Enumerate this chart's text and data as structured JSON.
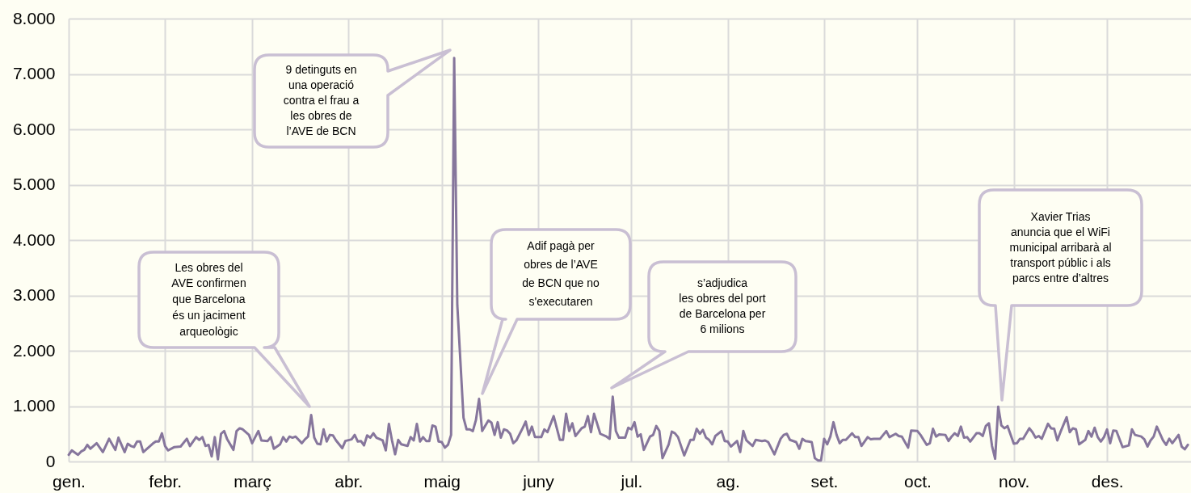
{
  "chart_data": {
    "type": "line",
    "color": "#86769c",
    "x": [
      "--01-01",
      "--01-02",
      "--01-04",
      "--01-05",
      "--01-06",
      "--01-07",
      "--01-08",
      "--01-10",
      "--01-12",
      "--01-14",
      "--01-16",
      "--01-17",
      "--01-19",
      "--01-20",
      "--01-21",
      "--01-22",
      "--01-23",
      "--01-24",
      "--01-25",
      "--01-28",
      "--01-29",
      "--01-30",
      "--01-31",
      "--02-01",
      "--02-02",
      "--02-04",
      "--02-06",
      "--02-08",
      "--02-09",
      "--02-11",
      "--02-12",
      "--02-13",
      "--02-14",
      "--02-15",
      "--02-16",
      "--02-17",
      "--02-18",
      "--02-19",
      "--02-20",
      "--02-21",
      "--02-23",
      "--02-24",
      "--02-25",
      "--02-26",
      "--02-28",
      "--03-01",
      "--03-03",
      "--03-04",
      "--03-06",
      "--03-07",
      "--03-08",
      "--03-10",
      "--03-11",
      "--03-12",
      "--03-13",
      "--03-14",
      "--03-15",
      "--03-17",
      "--03-18",
      "--03-19",
      "--03-20",
      "--03-21",
      "--03-22",
      "--03-23",
      "--03-24",
      "--03-25",
      "--03-26",
      "--03-27",
      "--03-28",
      "--03-30",
      "--03-31",
      "--04-02",
      "--04-03",
      "--04-04",
      "--04-05",
      "--04-06",
      "--04-07",
      "--04-08",
      "--04-09",
      "--04-10",
      "--04-12",
      "--04-13",
      "--04-14",
      "--04-15",
      "--04-16",
      "--04-17",
      "--04-18",
      "--04-20",
      "--04-21",
      "--04-22",
      "--04-23",
      "--04-24",
      "--04-25",
      "--04-26",
      "--04-27",
      "--04-28",
      "--04-29",
      "--04-30",
      "--05-01",
      "--05-02",
      "--05-03",
      "--05-04",
      "--05-05",
      "--05-06",
      "--05-07",
      "--05-08",
      "--05-09",
      "--05-10",
      "--05-11",
      "--05-12",
      "--05-13",
      "--05-14",
      "--05-16",
      "--05-17",
      "--05-18",
      "--05-19",
      "--05-20",
      "--05-21",
      "--05-22",
      "--05-23",
      "--05-24",
      "--05-25",
      "--05-27",
      "--05-28",
      "--05-29",
      "--05-30",
      "--05-31",
      "--06-02",
      "--06-03",
      "--06-04",
      "--06-06",
      "--06-08",
      "--06-09",
      "--06-10",
      "--06-11",
      "--06-12",
      "--06-13",
      "--06-15",
      "--06-16",
      "--06-17",
      "--06-18",
      "--06-19",
      "--06-21",
      "--06-23",
      "--06-24",
      "--06-25",
      "--06-26",
      "--06-27",
      "--06-29",
      "--06-30",
      "--07-01",
      "--07-02",
      "--07-03",
      "--07-04",
      "--07-05",
      "--07-07",
      "--07-08",
      "--07-09",
      "--07-10",
      "--07-11",
      "--07-13",
      "--07-14",
      "--07-15",
      "--07-16",
      "--07-18",
      "--07-20",
      "--07-21",
      "--07-22",
      "--07-23",
      "--07-24",
      "--07-25",
      "--07-26",
      "--07-27",
      "--07-28",
      "--07-30",
      "--07-31",
      "--08-01",
      "--08-02",
      "--08-04",
      "--08-05",
      "--08-06",
      "--08-07",
      "--08-09",
      "--08-10",
      "--08-12",
      "--08-13",
      "--08-14",
      "--08-16",
      "--08-18",
      "--08-19",
      "--08-20",
      "--08-21",
      "--08-23",
      "--08-24",
      "--08-25",
      "--08-26",
      "--08-27",
      "--08-28",
      "--08-29",
      "--08-30",
      "--08-31",
      "--09-01",
      "--09-02",
      "--09-03",
      "--09-04",
      "--09-05",
      "--09-06",
      "--09-07",
      "--09-08",
      "--09-10",
      "--09-11",
      "--09-12",
      "--09-13",
      "--09-15",
      "--09-16",
      "--09-17",
      "--09-19",
      "--09-21",
      "--09-22",
      "--09-24",
      "--09-25",
      "--09-26",
      "--09-28",
      "--09-29",
      "--10-01",
      "--10-02",
      "--10-04",
      "--10-05",
      "--10-06",
      "--10-07",
      "--10-08",
      "--10-10",
      "--10-11",
      "--10-12",
      "--10-13",
      "--10-14",
      "--10-15",
      "--10-16",
      "--10-17",
      "--10-18",
      "--10-20",
      "--10-21",
      "--10-22",
      "--10-23",
      "--10-24",
      "--10-25",
      "--10-26",
      "--10-27",
      "--10-28",
      "--10-29",
      "--10-30",
      "--11-01",
      "--11-02",
      "--11-03",
      "--11-04",
      "--11-06",
      "--11-07",
      "--11-08",
      "--11-09",
      "--11-10",
      "--11-12",
      "--11-13",
      "--11-14",
      "--11-15",
      "--11-16",
      "--11-18",
      "--11-19",
      "--11-20",
      "--11-21",
      "--11-22",
      "--11-24",
      "--11-25",
      "--11-26",
      "--11-27",
      "--11-28",
      "--11-29",
      "--11-30",
      "--12-01",
      "--12-02",
      "--12-03",
      "--12-04",
      "--12-06",
      "--12-08",
      "--12-09",
      "--12-10",
      "--12-12",
      "--12-13",
      "--12-14",
      "--12-15",
      "--12-16",
      "--12-17",
      "--12-19",
      "--12-20",
      "--12-21",
      "--12-22",
      "--12-24",
      "--12-25",
      "--12-26",
      "--12-27"
    ],
    "values": [
      120,
      200,
      120,
      180,
      210,
      300,
      230,
      330,
      170,
      410,
      210,
      430,
      170,
      320,
      280,
      260,
      360,
      360,
      170,
      320,
      360,
      360,
      510,
      280,
      200,
      260,
      270,
      410,
      280,
      440,
      390,
      440,
      280,
      300,
      90,
      440,
      40,
      500,
      550,
      400,
      210,
      550,
      600,
      580,
      480,
      330,
      550,
      380,
      370,
      440,
      230,
      310,
      440,
      360,
      450,
      430,
      450,
      330,
      400,
      450,
      840,
      430,
      320,
      310,
      580,
      360,
      480,
      470,
      380,
      240,
      370,
      400,
      480,
      360,
      370,
      290,
      470,
      430,
      510,
      430,
      380,
      200,
      680,
      380,
      130,
      390,
      310,
      280,
      440,
      380,
      680,
      360,
      440,
      370,
      370,
      650,
      630,
      360,
      350,
      250,
      300,
      480,
      7290,
      2830,
      1810,
      790,
      580,
      580,
      550,
      750,
      1130,
      550,
      740,
      700,
      480,
      710,
      430,
      580,
      560,
      500,
      330,
      380,
      600,
      720,
      480,
      630,
      440,
      440,
      580,
      530,
      820,
      390,
      390,
      860,
      550,
      690,
      460,
      600,
      630,
      820,
      530,
      860,
      500,
      450,
      410,
      1170,
      550,
      430,
      430,
      610,
      580,
      710,
      450,
      490,
      210,
      450,
      480,
      640,
      550,
      60,
      310,
      540,
      510,
      440,
      110,
      390,
      390,
      590,
      500,
      570,
      430,
      390,
      310,
      460,
      550,
      370,
      360,
      270,
      370,
      170,
      550,
      380,
      280,
      390,
      370,
      380,
      350,
      130,
      410,
      480,
      500,
      390,
      350,
      230,
      410,
      370,
      360,
      350,
      60,
      20,
      20,
      410,
      310,
      450,
      710,
      480,
      330,
      390,
      390,
      510,
      440,
      440,
      280,
      440,
      400,
      410,
      410,
      550,
      440,
      500,
      460,
      450,
      250,
      560,
      550,
      480,
      300,
      330,
      590,
      450,
      490,
      480,
      370,
      450,
      510,
      460,
      630,
      430,
      440,
      360,
      510,
      510,
      460,
      640,
      690,
      280,
      50,
      990,
      650,
      600,
      640,
      320,
      330,
      410,
      410,
      600,
      530,
      430,
      460,
      410,
      680,
      600,
      590,
      380,
      530,
      800,
      530,
      600,
      580,
      310,
      390,
      550,
      450,
      610,
      440,
      360,
      440,
      580,
      330,
      560,
      550,
      260,
      290,
      580,
      480,
      450,
      400,
      270,
      380,
      450,
      630,
      380,
      300,
      410,
      330,
      480,
      270,
      220,
      300
    ],
    "xlim": [
      "--01-01",
      "--12-28"
    ],
    "xticks": [
      {
        "value": "--01-01",
        "label": "gen."
      },
      {
        "value": "--02-01",
        "label": "febr."
      },
      {
        "value": "--03-01",
        "label": "març"
      },
      {
        "value": "--04-01",
        "label": "abr."
      },
      {
        "value": "--05-01",
        "label": "maig"
      },
      {
        "value": "--06-01",
        "label": "juny"
      },
      {
        "value": "--07-01",
        "label": "jul."
      },
      {
        "value": "--08-01",
        "label": "ag."
      },
      {
        "value": "--09-01",
        "label": "set."
      },
      {
        "value": "--10-01",
        "label": "oct."
      },
      {
        "value": "--11-01",
        "label": "nov."
      },
      {
        "value": "--12-01",
        "label": "des."
      }
    ],
    "ylim": [
      0,
      8000
    ],
    "yticks": [
      0,
      {
        "value": 1000,
        "label": "1.000"
      },
      {
        "value": 2000,
        "label": "2.000"
      },
      {
        "value": 3000,
        "label": "3.000"
      },
      {
        "value": 4000,
        "label": "4.000"
      },
      {
        "value": 5000,
        "label": "5.000"
      },
      {
        "value": 6000,
        "label": "6.000"
      },
      {
        "value": 7000,
        "label": "7.000"
      },
      {
        "value": 8000,
        "label": "8.000"
      }
    ],
    "grid": true,
    "annotations": [
      "Les obres del\nAVE confirmen\nque Barcelona\nés un jaciment\narqueològic",
      "9 detinguts en\nuna operació\ncontra el frau a\nles obres de\nl’AVE de BCN",
      "Adif pagà per\nobres de l’AVE\nde BCN que no\ns'executaren",
      "s’adjudica\nles obres del port\nde Barcelona per\n6 milions",
      "Xavier Trias\nanuncia que el WiFi\nmunicipal arribarà al\ntransport públic i als\nparcs entre d’altres"
    ]
  }
}
